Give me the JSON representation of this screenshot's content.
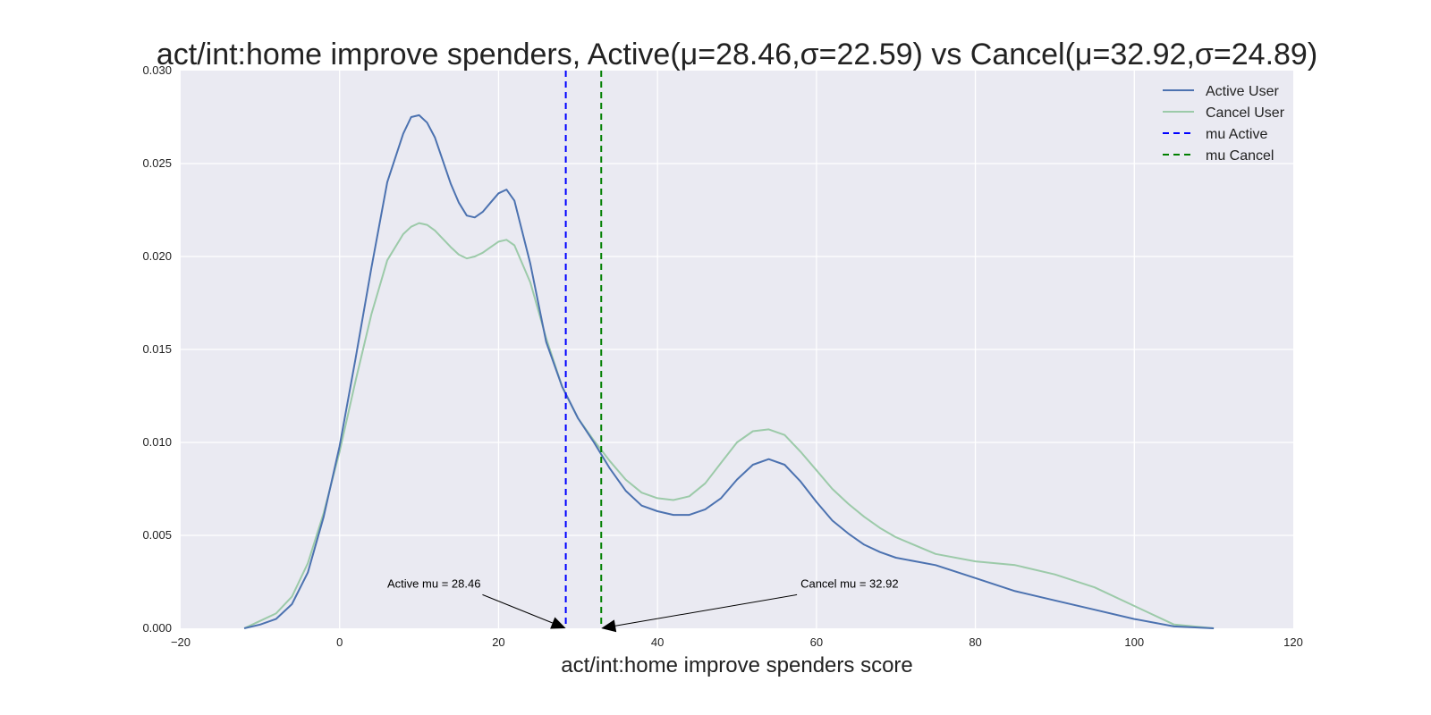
{
  "chart_data": {
    "type": "line",
    "title": "act/int:home improve spenders, Active(μ=28.46,σ=22.59) vs Cancel(μ=32.92,σ=24.89)",
    "xlabel": "act/int:home improve spenders score",
    "ylabel": "",
    "xlim": [
      -20,
      120
    ],
    "ylim": [
      0,
      0.03
    ],
    "x_ticks": [
      "−20",
      "0",
      "20",
      "40",
      "60",
      "80",
      "100",
      "120"
    ],
    "y_ticks": [
      "0.000",
      "0.005",
      "0.010",
      "0.015",
      "0.020",
      "0.025",
      "0.030"
    ],
    "grid": true,
    "legend_position": "top-right",
    "series": [
      {
        "name": "Active User",
        "color": "#4c72b0",
        "x": [
          -12,
          -10,
          -8,
          -6,
          -4,
          -2,
          0,
          2,
          4,
          6,
          8,
          9,
          10,
          11,
          12,
          14,
          15,
          16,
          17,
          18,
          19,
          20,
          21,
          22,
          24,
          26,
          28,
          30,
          32,
          34,
          36,
          38,
          40,
          42,
          44,
          46,
          48,
          50,
          52,
          54,
          56,
          58,
          60,
          62,
          64,
          66,
          68,
          70,
          75,
          80,
          85,
          90,
          95,
          100,
          105,
          110
        ],
        "y": [
          0.0,
          0.0002,
          0.0005,
          0.0013,
          0.003,
          0.006,
          0.0098,
          0.0145,
          0.0194,
          0.024,
          0.0266,
          0.0275,
          0.0276,
          0.0272,
          0.0264,
          0.0239,
          0.0229,
          0.0222,
          0.0221,
          0.0224,
          0.0229,
          0.0234,
          0.0236,
          0.023,
          0.0196,
          0.0154,
          0.013,
          0.0113,
          0.01,
          0.0086,
          0.0074,
          0.0066,
          0.0063,
          0.0061,
          0.0061,
          0.0064,
          0.007,
          0.008,
          0.0088,
          0.0091,
          0.0088,
          0.0079,
          0.0068,
          0.0058,
          0.0051,
          0.0045,
          0.0041,
          0.0038,
          0.0034,
          0.0027,
          0.002,
          0.0015,
          0.001,
          0.0005,
          0.0001,
          0.0
        ]
      },
      {
        "name": "Cancel User",
        "color": "#9ccaa9",
        "x": [
          -12,
          -10,
          -8,
          -6,
          -4,
          -2,
          0,
          2,
          4,
          6,
          8,
          9,
          10,
          11,
          12,
          14,
          15,
          16,
          17,
          18,
          19,
          20,
          21,
          22,
          24,
          26,
          28,
          30,
          32,
          34,
          36,
          38,
          40,
          42,
          44,
          46,
          48,
          50,
          52,
          54,
          56,
          58,
          60,
          62,
          64,
          66,
          68,
          70,
          75,
          80,
          85,
          90,
          95,
          100,
          105,
          110
        ],
        "y": [
          0.0,
          0.0004,
          0.0008,
          0.0017,
          0.0035,
          0.0062,
          0.0095,
          0.0133,
          0.0169,
          0.0198,
          0.0212,
          0.0216,
          0.0218,
          0.0217,
          0.0214,
          0.0205,
          0.0201,
          0.0199,
          0.02,
          0.0202,
          0.0205,
          0.0208,
          0.0209,
          0.0206,
          0.0186,
          0.0156,
          0.013,
          0.0113,
          0.0101,
          0.009,
          0.008,
          0.0073,
          0.007,
          0.0069,
          0.0071,
          0.0078,
          0.0089,
          0.01,
          0.0106,
          0.0107,
          0.0104,
          0.0095,
          0.0085,
          0.0075,
          0.0067,
          0.006,
          0.0054,
          0.0049,
          0.004,
          0.0036,
          0.0034,
          0.0029,
          0.0022,
          0.0012,
          0.0002,
          0.0
        ]
      }
    ],
    "vlines": [
      {
        "name": "mu Active",
        "x": 28.46,
        "color": "#0000ff",
        "style": "dashed"
      },
      {
        "name": "mu Cancel",
        "x": 32.92,
        "color": "#007f00",
        "style": "dashed"
      }
    ],
    "annotations": [
      {
        "text": "Active mu = 28.46",
        "x": 28.46,
        "y": 0.0,
        "text_x": 6,
        "text_y": 0.002
      },
      {
        "text": "Cancel mu = 32.92",
        "x": 32.92,
        "y": 0.0,
        "text_x": 58,
        "text_y": 0.002
      }
    ],
    "colors": {
      "background": "#eaeaf2",
      "grid": "#ffffff"
    }
  }
}
